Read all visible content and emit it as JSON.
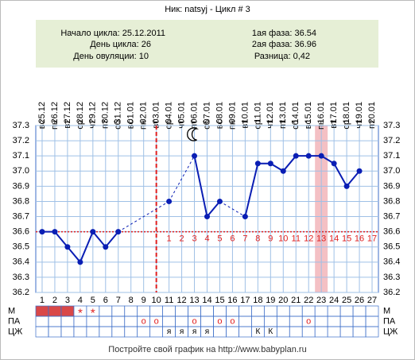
{
  "header": {
    "title": "Ник: natsyj - Цикл # 3"
  },
  "info": {
    "cycle_start": "Начало цикла: 25.12.2011",
    "cycle_day": "День цикла: 26",
    "ovulation_day": {
      "label": "День овуляции: 10",
      "value": 10
    },
    "phase1": "1ая фаза: 36.54",
    "phase2": "2ая фаза: 36.96",
    "difference": "Разница: 0,42"
  },
  "chart_data": {
    "type": "line",
    "color": "#0a1eb4",
    "x": [
      1,
      2,
      3,
      4,
      5,
      6,
      7,
      8,
      9,
      10,
      11,
      12,
      13,
      14,
      15,
      16,
      17,
      18,
      19,
      20,
      21,
      22,
      23,
      24,
      25,
      26,
      27
    ],
    "dates": [
      "25.12",
      "26.12",
      "27.12",
      "28.12",
      "29.12",
      "30.12",
      "31.12",
      "01.01",
      "02.01",
      "03.01",
      "04.01",
      "05.01",
      "06.01",
      "07.01",
      "08.01",
      "09.01",
      "10.01",
      "11.01",
      "12.01",
      "13.01",
      "14.01",
      "15.01",
      "16.01",
      "17.01",
      "18.01",
      "19.01",
      "20.01"
    ],
    "weekdays": [
      "вс",
      "пн",
      "вт",
      "ср",
      "чт",
      "пт",
      "сб",
      "вс",
      "пн",
      "вт",
      "ср",
      "чт",
      "пт",
      "сб",
      "вс",
      "пн",
      "вт",
      "ср",
      "чт",
      "пт",
      "сб",
      "вс",
      "пн",
      "вт",
      "ср",
      "чт",
      "пт"
    ],
    "values": [
      36.6,
      36.6,
      36.5,
      36.4,
      36.6,
      36.5,
      36.6,
      null,
      null,
      null,
      36.8,
      null,
      37.1,
      36.7,
      36.8,
      null,
      36.7,
      37.05,
      37.05,
      37.0,
      37.1,
      37.1,
      37.1,
      37.05,
      36.9,
      37.0,
      null
    ],
    "ylim": [
      36.2,
      37.3
    ],
    "yticks": [
      36.2,
      36.3,
      36.4,
      36.5,
      36.6,
      36.7,
      36.8,
      36.9,
      {
        "value": 37,
        "label": "37.0"
      },
      37.1,
      37.2,
      37.3
    ],
    "coverline": 36.6,
    "highlight_day": 23,
    "moon_day": 13,
    "phase_days": [
      1,
      2,
      3,
      4,
      5,
      6,
      7,
      8,
      9,
      10,
      11,
      12,
      13,
      14,
      15,
      16,
      17
    ],
    "rows": [
      {
        "label": "М",
        "filled_days": [
          1,
          2,
          3
        ],
        "cells": [
          null,
          null,
          null,
          "*",
          "*",
          null,
          null,
          null,
          null,
          null,
          null,
          null,
          null,
          null,
          null,
          null,
          null,
          null,
          null,
          null,
          null,
          null,
          null,
          null,
          null,
          null,
          null
        ]
      },
      {
        "label": "ПА",
        "cells": [
          null,
          null,
          null,
          null,
          null,
          null,
          null,
          null,
          "о",
          "о",
          null,
          null,
          "о",
          null,
          "о",
          "о",
          null,
          null,
          null,
          null,
          null,
          "о",
          null,
          null,
          null,
          null,
          null
        ]
      },
      {
        "label": "ЦЖ",
        "cells": [
          null,
          null,
          null,
          null,
          null,
          null,
          null,
          null,
          null,
          null,
          "я",
          "я",
          "я",
          "я",
          null,
          null,
          null,
          "К",
          "К",
          null,
          null,
          null,
          null,
          null,
          null,
          null,
          null
        ]
      }
    ],
    "footer": "Постройте свой график на http://www.babyplan.ru"
  }
}
